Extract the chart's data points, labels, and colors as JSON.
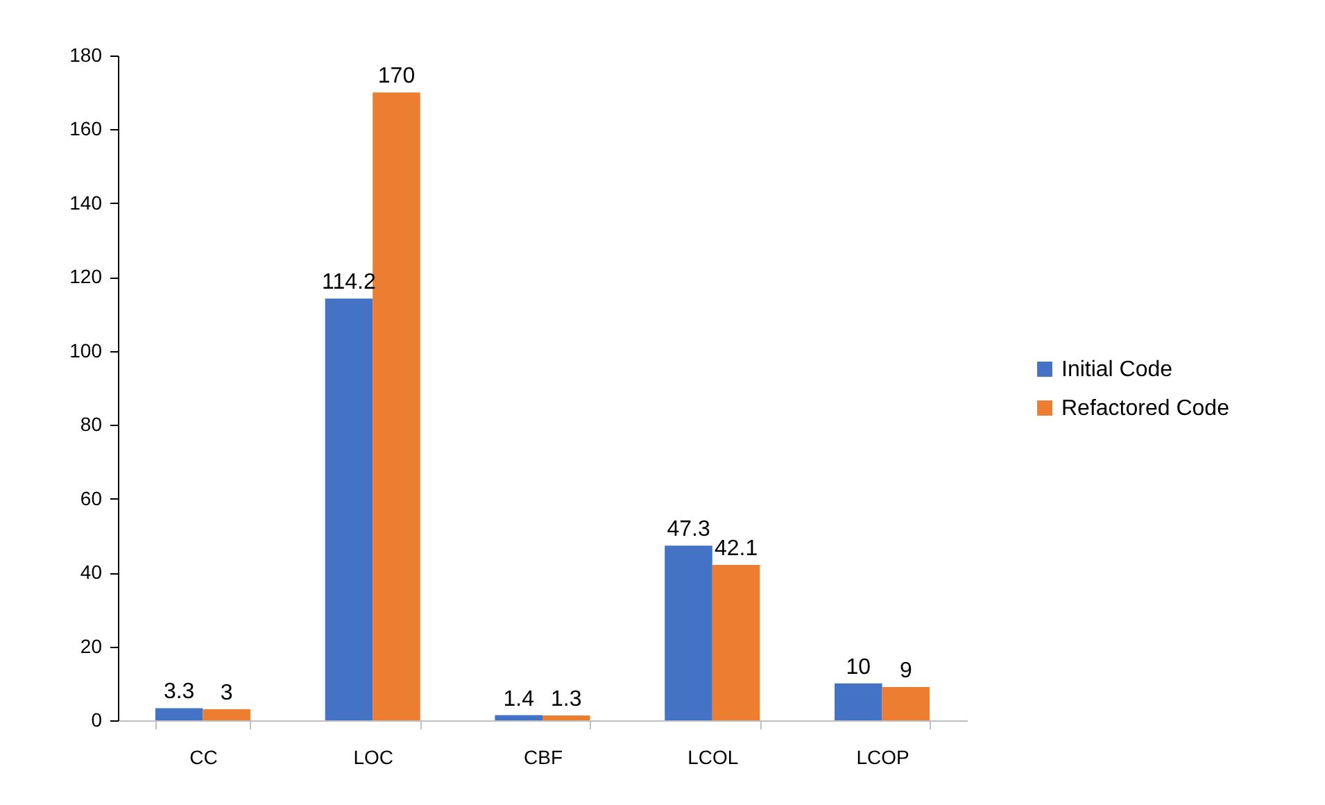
{
  "chart_data": {
    "type": "bar",
    "categories": [
      "CC",
      "LOC",
      "CBF",
      "LCOL",
      "LCOP"
    ],
    "series": [
      {
        "name": "Initial Code",
        "color": "#4472c4",
        "values": [
          3.3,
          114.2,
          1.4,
          47.3,
          10
        ]
      },
      {
        "name": "Refactored Code",
        "color": "#ed7d31",
        "values": [
          3,
          170,
          1.3,
          42.1,
          9
        ]
      }
    ],
    "ylim": [
      0,
      180
    ],
    "yticks": [
      0,
      20,
      40,
      60,
      80,
      100,
      120,
      140,
      160,
      180
    ],
    "legend": "right",
    "data_labels": true
  }
}
